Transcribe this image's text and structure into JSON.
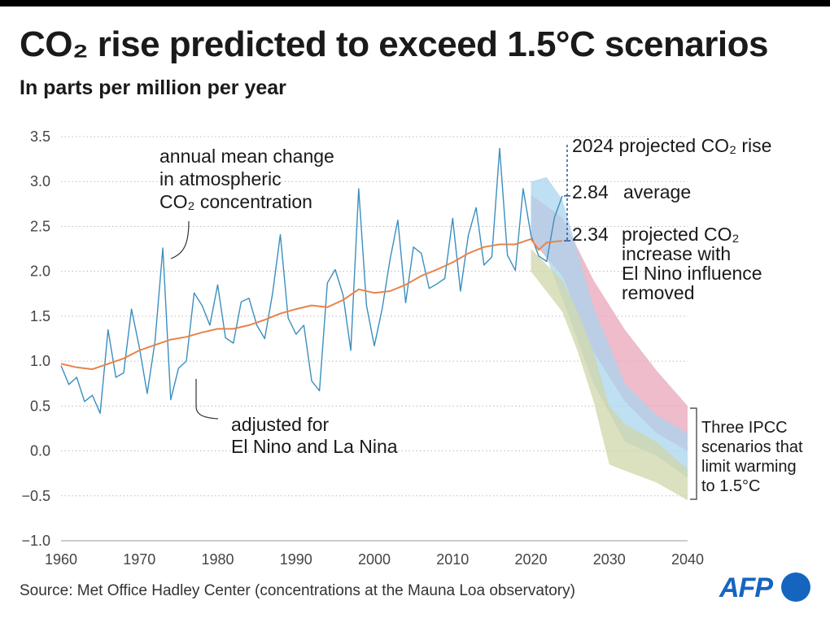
{
  "header": {
    "title": "CO₂ rise predicted to exceed 1.5°C scenarios",
    "subtitle": "In parts per million per year"
  },
  "footer": {
    "source": "Source: Met Office Hadley Center (concentrations at the Mauna Loa observatory)",
    "logo_text": "AFP"
  },
  "annotations": {
    "annual_label": [
      "annual mean change",
      "in atmospheric",
      "CO₂ concentration"
    ],
    "adjusted_label": [
      "adjusted for",
      "El Nino and La Nina"
    ],
    "projection_title": "2024 projected CO₂ rise",
    "average_value": "2.84",
    "average_label": "average",
    "elnino_value": "2.34",
    "elnino_label": [
      "projected CO₂",
      "increase with",
      "El Nino influence",
      "removed"
    ],
    "ipcc_label": [
      "Three IPCC",
      "scenarios that",
      "limit warming",
      "to 1.5°C"
    ]
  },
  "colors": {
    "annual_line": "#3a8fbf",
    "adjusted_line": "#e8834a",
    "scenario_pink": "#e8a6b8",
    "scenario_blue": "#a9d4ee",
    "scenario_green": "#cfd6a8",
    "grid": "#bbbbbb",
    "projection_marker": "#2a4fa0"
  },
  "chart_data": {
    "type": "line",
    "xlim": [
      1960,
      2040
    ],
    "ylim": [
      -1.0,
      3.5
    ],
    "x_ticks": [
      1960,
      1970,
      1980,
      1990,
      2000,
      2010,
      2020,
      2030,
      2040
    ],
    "y_ticks": [
      3.5,
      3.0,
      2.5,
      2.0,
      1.5,
      1.0,
      0.5,
      0.0,
      -0.5,
      -1.0
    ],
    "y_tick_labels": [
      "3.5",
      "3.0",
      "2.5",
      "2.0",
      "1.5",
      "1.0",
      "0.5",
      "0.0",
      "−0.5",
      "−1.0"
    ],
    "grid": "horizontal dotted",
    "series": [
      {
        "name": "annual mean change in atmospheric CO₂ concentration",
        "x": [
          1960,
          1961,
          1962,
          1963,
          1964,
          1965,
          1966,
          1967,
          1968,
          1969,
          1970,
          1971,
          1972,
          1973,
          1974,
          1975,
          1976,
          1977,
          1978,
          1979,
          1980,
          1981,
          1982,
          1983,
          1984,
          1985,
          1986,
          1987,
          1988,
          1989,
          1990,
          1991,
          1992,
          1993,
          1994,
          1995,
          1996,
          1997,
          1998,
          1999,
          2000,
          2001,
          2002,
          2003,
          2004,
          2005,
          2006,
          2007,
          2008,
          2009,
          2010,
          2011,
          2012,
          2013,
          2014,
          2015,
          2016,
          2017,
          2018,
          2019,
          2020,
          2021,
          2022,
          2023,
          2024
        ],
        "values": [
          0.95,
          0.74,
          0.82,
          0.55,
          0.62,
          0.42,
          1.35,
          0.82,
          0.87,
          1.58,
          1.15,
          0.64,
          1.22,
          2.26,
          0.57,
          0.92,
          1.0,
          1.76,
          1.62,
          1.4,
          1.85,
          1.26,
          1.2,
          1.66,
          1.7,
          1.4,
          1.25,
          1.75,
          2.41,
          1.48,
          1.3,
          1.4,
          0.78,
          0.67,
          1.87,
          2.02,
          1.74,
          1.12,
          2.92,
          1.62,
          1.17,
          1.58,
          2.13,
          2.57,
          1.65,
          2.27,
          2.2,
          1.81,
          1.86,
          1.92,
          2.59,
          1.78,
          2.4,
          2.71,
          2.07,
          2.16,
          3.37,
          2.18,
          2.01,
          2.92,
          2.4,
          2.17,
          2.11,
          2.6,
          2.84
        ]
      },
      {
        "name": "adjusted for El Nino and La Nina",
        "x": [
          1960,
          1962,
          1964,
          1966,
          1968,
          1970,
          1972,
          1974,
          1976,
          1978,
          1980,
          1982,
          1984,
          1986,
          1988,
          1990,
          1992,
          1994,
          1996,
          1998,
          2000,
          2002,
          2004,
          2006,
          2008,
          2010,
          2012,
          2014,
          2016,
          2018,
          2020,
          2021,
          2022,
          2024
        ],
        "values": [
          0.97,
          0.93,
          0.91,
          0.97,
          1.03,
          1.12,
          1.18,
          1.24,
          1.27,
          1.32,
          1.36,
          1.36,
          1.4,
          1.46,
          1.53,
          1.58,
          1.62,
          1.6,
          1.68,
          1.8,
          1.76,
          1.78,
          1.85,
          1.95,
          2.02,
          2.1,
          2.2,
          2.27,
          2.3,
          2.3,
          2.36,
          2.24,
          2.32,
          2.34
        ]
      }
    ],
    "projection_2024": {
      "average": 2.84,
      "el_nino_removed": 2.34
    },
    "ipcc_scenarios": [
      {
        "x": [
          2020,
          2024,
          2028,
          2032,
          2036,
          2040
        ],
        "upper": [
          2.85,
          2.6,
          1.9,
          1.35,
          0.9,
          0.5
        ],
        "lower": [
          2.35,
          1.95,
          1.1,
          0.55,
          0.2,
          0.0
        ]
      },
      {
        "x": [
          2020,
          2022,
          2024,
          2028,
          2032,
          2036,
          2040
        ],
        "upper": [
          3.0,
          3.05,
          2.8,
          1.6,
          0.75,
          0.4,
          0.2
        ],
        "lower": [
          2.4,
          2.15,
          1.7,
          0.75,
          0.1,
          -0.05,
          -0.3
        ]
      },
      {
        "x": [
          2020,
          2024,
          2026,
          2028,
          2030,
          2032,
          2036,
          2040
        ],
        "upper": [
          2.25,
          1.9,
          1.55,
          1.1,
          0.5,
          0.3,
          0.1,
          -0.2
        ],
        "lower": [
          2.0,
          1.55,
          1.1,
          0.55,
          -0.15,
          -0.22,
          -0.35,
          -0.55
        ]
      }
    ]
  }
}
